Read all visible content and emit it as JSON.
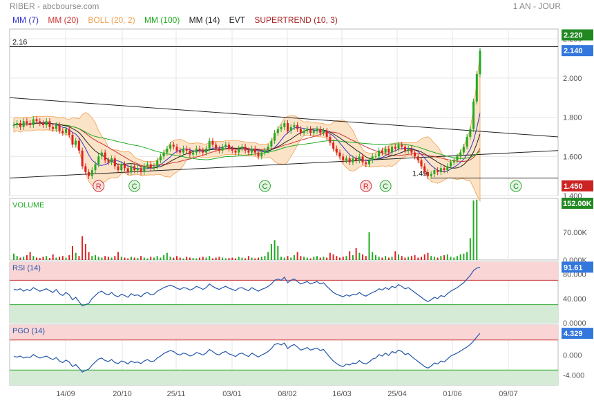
{
  "header": {
    "title": "RIBER - abcbourse.com",
    "period": "1 AN - JOUR"
  },
  "legend": [
    {
      "label": "MM (7)",
      "color": "#3333cc"
    },
    {
      "label": "MM (20)",
      "color": "#cc3333"
    },
    {
      "label": "BOLL (20, 2)",
      "color": "#f0a050"
    },
    {
      "label": "MM (100)",
      "color": "#22aa22"
    },
    {
      "label": "MM (14)",
      "color": "#222222"
    },
    {
      "label": "EVT",
      "color": "#222222"
    },
    {
      "label": "SUPERTREND (10, 3)",
      "color": "#aa2222"
    }
  ],
  "colors": {
    "up": "#22aa22",
    "down": "#dd2222",
    "boll_fill": "#fbe3c8",
    "rsi_line": "#2255aa",
    "over_zone": "#f9d5d5",
    "under_zone": "#d5ebd5"
  },
  "chart_data": [
    {
      "type": "candlestick",
      "panel": "price",
      "x_ticks": [
        "14/09",
        "20/10",
        "25/11",
        "03/01",
        "08/02",
        "16/03",
        "25/04",
        "01/06",
        "09/07"
      ],
      "y_ticks": [
        "1.400",
        "1.600",
        "1.800",
        "2.000",
        "2.200"
      ],
      "ylim": [
        1.4,
        2.25
      ],
      "annotations": [
        {
          "label": "2.16",
          "value": 2.16
        },
        {
          "label": "1.49",
          "value": 1.49
        }
      ],
      "price_badges": [
        {
          "label": "2.220",
          "value": 2.22,
          "color": "#228822"
        },
        {
          "label": "2.140",
          "value": 2.14,
          "color": "#3377dd"
        },
        {
          "label": "1.450",
          "value": 1.45,
          "color": "#cc2222"
        }
      ],
      "markers": [
        {
          "label": "R",
          "x_index": 26
        },
        {
          "label": "C",
          "x_index": 37
        },
        {
          "label": "C",
          "x_index": 77
        },
        {
          "label": "R",
          "x_index": 108
        },
        {
          "label": "C",
          "x_index": 114
        },
        {
          "label": "C",
          "x_index": 154
        }
      ],
      "close": [
        1.76,
        1.77,
        1.75,
        1.78,
        1.77,
        1.76,
        1.79,
        1.78,
        1.77,
        1.76,
        1.78,
        1.75,
        1.74,
        1.76,
        1.73,
        1.72,
        1.74,
        1.71,
        1.66,
        1.68,
        1.63,
        1.55,
        1.52,
        1.5,
        1.53,
        1.56,
        1.6,
        1.62,
        1.58,
        1.57,
        1.59,
        1.55,
        1.53,
        1.56,
        1.54,
        1.52,
        1.55,
        1.53,
        1.54,
        1.52,
        1.55,
        1.56,
        1.54,
        1.55,
        1.58,
        1.6,
        1.62,
        1.64,
        1.66,
        1.65,
        1.63,
        1.62,
        1.64,
        1.63,
        1.61,
        1.62,
        1.64,
        1.63,
        1.62,
        1.64,
        1.68,
        1.66,
        1.64,
        1.63,
        1.65,
        1.66,
        1.64,
        1.63,
        1.62,
        1.64,
        1.65,
        1.63,
        1.62,
        1.64,
        1.62,
        1.6,
        1.62,
        1.63,
        1.65,
        1.68,
        1.72,
        1.74,
        1.75,
        1.77,
        1.73,
        1.75,
        1.76,
        1.74,
        1.72,
        1.73,
        1.74,
        1.72,
        1.73,
        1.74,
        1.72,
        1.73,
        1.7,
        1.67,
        1.64,
        1.62,
        1.6,
        1.58,
        1.59,
        1.57,
        1.59,
        1.58,
        1.6,
        1.57,
        1.56,
        1.58,
        1.6,
        1.6,
        1.63,
        1.62,
        1.64,
        1.62,
        1.65,
        1.64,
        1.66,
        1.65,
        1.63,
        1.64,
        1.62,
        1.6,
        1.58,
        1.55,
        1.52,
        1.5,
        1.51,
        1.53,
        1.52,
        1.54,
        1.53,
        1.55,
        1.57,
        1.58,
        1.6,
        1.62,
        1.65,
        1.7,
        1.74,
        1.88,
        2.02,
        2.14
      ],
      "volume_ticks": [
        "0.000K",
        "70.00K",
        "140.00K"
      ],
      "volume_max": 155,
      "volume_badge": "152.00K",
      "volume_k": [
        16,
        10,
        6,
        8,
        12,
        20,
        10,
        6,
        5,
        8,
        10,
        5,
        14,
        6,
        8,
        10,
        6,
        12,
        35,
        18,
        10,
        60,
        40,
        20,
        10,
        12,
        8,
        6,
        10,
        8,
        6,
        10,
        20,
        8,
        6,
        4,
        8,
        6,
        5,
        10,
        6,
        4,
        8,
        6,
        10,
        6,
        12,
        18,
        8,
        6,
        10,
        6,
        4,
        8,
        6,
        5,
        4,
        6,
        8,
        6,
        10,
        4,
        6,
        8,
        6,
        4,
        5,
        6,
        4,
        8,
        6,
        4,
        10,
        6,
        4,
        6,
        8,
        10,
        20,
        40,
        50,
        35,
        8,
        6,
        10,
        6,
        12,
        20,
        10,
        8,
        6,
        4,
        8,
        10,
        6,
        8,
        6,
        18,
        14,
        10,
        6,
        8,
        10,
        22,
        12,
        30,
        18,
        14,
        10,
        70,
        20,
        12,
        8,
        6,
        10,
        6,
        8,
        22,
        14,
        10,
        6,
        8,
        10,
        12,
        6,
        8,
        14,
        18,
        10,
        8,
        6,
        10,
        12,
        14,
        8,
        6,
        10,
        14,
        16,
        20,
        55,
        150,
        152
      ],
      "rsi_ticks": [
        "0.0000",
        "40.000",
        "80.000"
      ],
      "rsi_badge": "91.61",
      "rsi": [
        55,
        54,
        56,
        52,
        55,
        53,
        58,
        55,
        52,
        54,
        56,
        53,
        50,
        55,
        48,
        45,
        50,
        46,
        38,
        42,
        35,
        28,
        30,
        32,
        40,
        45,
        50,
        52,
        48,
        46,
        50,
        45,
        43,
        47,
        45,
        42,
        48,
        45,
        46,
        43,
        48,
        50,
        46,
        47,
        52,
        55,
        58,
        60,
        62,
        60,
        57,
        55,
        58,
        57,
        54,
        56,
        60,
        58,
        55,
        58,
        64,
        60,
        57,
        55,
        58,
        60,
        57,
        55,
        53,
        57,
        58,
        55,
        53,
        58,
        55,
        52,
        55,
        57,
        60,
        64,
        70,
        72,
        70,
        75,
        66,
        70,
        72,
        68,
        64,
        66,
        68,
        64,
        66,
        68,
        64,
        66,
        60,
        55,
        50,
        47,
        45,
        43,
        46,
        44,
        47,
        46,
        50,
        46,
        44,
        47,
        50,
        52,
        56,
        54,
        58,
        55,
        60,
        58,
        63,
        60,
        56,
        58,
        54,
        50,
        46,
        42,
        38,
        35,
        38,
        42,
        40,
        45,
        43,
        48,
        52,
        55,
        58,
        62,
        66,
        72,
        78,
        86,
        90,
        91.61
      ],
      "pgo_ticks": [
        "-4.000",
        "0.000",
        "4.000"
      ],
      "pgo_badge": "4.329",
      "pgo": [
        -0.3,
        -0.4,
        -0.2,
        -0.6,
        -0.4,
        -0.5,
        0.1,
        -0.3,
        -0.6,
        -0.4,
        -0.2,
        -0.6,
        -0.9,
        -0.5,
        -1.2,
        -1.5,
        -1.0,
        -1.4,
        -2.3,
        -1.9,
        -2.6,
        -3.4,
        -3.1,
        -2.8,
        -2.0,
        -1.4,
        -0.8,
        -0.6,
        -1.1,
        -1.3,
        -0.9,
        -1.5,
        -1.7,
        -1.2,
        -1.4,
        -1.8,
        -1.2,
        -1.5,
        -1.4,
        -1.7,
        -1.2,
        -0.9,
        -1.3,
        -1.2,
        -0.6,
        -0.2,
        0.3,
        0.6,
        0.9,
        0.7,
        0.2,
        0.0,
        0.4,
        0.2,
        -0.2,
        0.0,
        0.5,
        0.3,
        0.0,
        0.4,
        1.1,
        0.7,
        0.2,
        0.0,
        0.5,
        0.7,
        0.2,
        0.0,
        -0.3,
        0.2,
        0.4,
        0.0,
        -0.3,
        0.4,
        0.0,
        -0.4,
        0.0,
        0.3,
        0.7,
        1.3,
        2.1,
        2.3,
        2.0,
        2.4,
        1.3,
        1.8,
        2.1,
        1.6,
        1.0,
        1.2,
        1.5,
        1.0,
        1.2,
        1.4,
        0.9,
        1.1,
        0.3,
        -0.5,
        -1.2,
        -1.7,
        -2.1,
        -2.3,
        -1.8,
        -2.0,
        -1.6,
        -1.7,
        -1.1,
        -1.6,
        -1.8,
        -1.4,
        -0.8,
        -0.6,
        0.1,
        -0.2,
        0.4,
        -0.1,
        0.7,
        0.4,
        1.0,
        0.7,
        0.1,
        0.3,
        -0.3,
        -0.8,
        -1.3,
        -1.8,
        -2.3,
        -2.6,
        -2.2,
        -1.6,
        -1.8,
        -1.2,
        -1.4,
        -0.8,
        -0.2,
        0.1,
        0.4,
        0.8,
        1.2,
        1.6,
        2.1,
        2.8,
        3.6,
        4.329
      ]
    }
  ]
}
